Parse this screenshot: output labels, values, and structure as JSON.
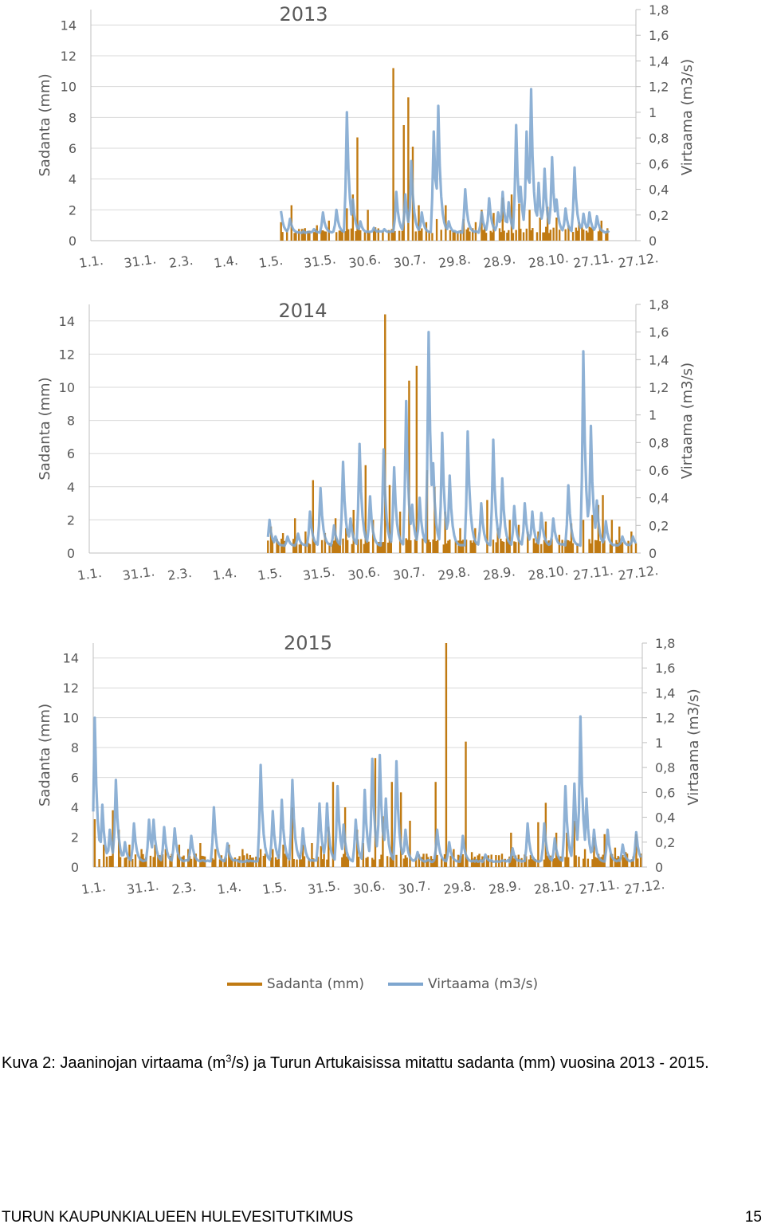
{
  "colors": {
    "sadanta": "#C07A12",
    "virtaama": "#7EA6CF",
    "grid": "#D9D9D9",
    "axis": "#BFBFBF",
    "text": "#595959"
  },
  "legend": {
    "sadanta": "Sadanta (mm)",
    "virtaama": "Virtaama (m3/s)"
  },
  "caption": {
    "part1": "Kuva 2: Jaaninojan virtaama (m",
    "sup": "3",
    "part2": "/s) ja Turun Artukaisissa mitattu sadanta (mm) vuosina 2013 - 2015."
  },
  "footer": {
    "title": "TURUN KAUPUNKIALUEEN HULEVESITUTKIMUS",
    "page": "15"
  },
  "chart_data": [
    {
      "type": "bar+line",
      "title": "2013",
      "ylabel": "Sadanta (mm)",
      "y2label": "Virtaama (m3/s)",
      "ylim": [
        0,
        15
      ],
      "y2lim": [
        0,
        1.8
      ],
      "yticks": [
        "0",
        "2",
        "4",
        "6",
        "8",
        "10",
        "12",
        "14"
      ],
      "y2ticks": [
        "0",
        "0,2",
        "0,4",
        "0,6",
        "0,8",
        "1",
        "1,2",
        "1,4",
        "1,6",
        "1,8"
      ],
      "xticks": [
        "1.1.",
        "31.1.",
        "2.3.",
        "1.4.",
        "1.5.",
        "31.5.",
        "30.6.",
        "30.7.",
        "29.8.",
        "28.9.",
        "28.10.",
        "27.11.",
        "27.12."
      ],
      "data_range": [
        128,
        347
      ],
      "sadanta_peaks": [
        [
          128,
          1.2
        ],
        [
          135,
          2.3
        ],
        [
          152,
          1.0
        ],
        [
          160,
          1.3
        ],
        [
          172,
          2.1
        ],
        [
          176,
          3.0
        ],
        [
          179,
          6.7
        ],
        [
          186,
          2.0
        ],
        [
          193,
          0.8
        ],
        [
          203,
          11.2
        ],
        [
          210,
          7.5
        ],
        [
          213,
          9.3
        ],
        [
          216,
          6.1
        ],
        [
          220,
          2.3
        ],
        [
          225,
          1.2
        ],
        [
          232,
          1.4
        ],
        [
          238,
          2.3
        ],
        [
          250,
          1.4
        ],
        [
          258,
          1.2
        ],
        [
          262,
          2.0
        ],
        [
          270,
          1.8
        ],
        [
          276,
          2.8
        ],
        [
          282,
          3.0
        ],
        [
          287,
          2.4
        ],
        [
          294,
          2.0
        ],
        [
          301,
          1.5
        ],
        [
          306,
          2.2
        ],
        [
          312,
          1.5
        ],
        [
          320,
          1.0
        ],
        [
          327,
          1.2
        ],
        [
          334,
          0.9
        ],
        [
          342,
          1.3
        ]
      ],
      "virtaama_base": 0.06,
      "virtaama_peaks": [
        [
          128,
          0.23
        ],
        [
          134,
          0.17
        ],
        [
          150,
          0.09
        ],
        [
          156,
          0.22
        ],
        [
          165,
          0.24
        ],
        [
          172,
          1.0
        ],
        [
          176,
          0.32
        ],
        [
          181,
          0.15
        ],
        [
          190,
          0.1
        ],
        [
          197,
          0.09
        ],
        [
          205,
          0.38
        ],
        [
          211,
          0.36
        ],
        [
          215,
          0.62
        ],
        [
          222,
          0.22
        ],
        [
          230,
          0.85
        ],
        [
          233,
          1.05
        ],
        [
          240,
          0.15
        ],
        [
          251,
          0.4
        ],
        [
          262,
          0.22
        ],
        [
          267,
          0.33
        ],
        [
          273,
          0.22
        ],
        [
          276,
          0.38
        ],
        [
          280,
          0.3
        ],
        [
          285,
          0.9
        ],
        [
          288,
          0.42
        ],
        [
          292,
          0.85
        ],
        [
          295,
          1.18
        ],
        [
          300,
          0.45
        ],
        [
          304,
          0.56
        ],
        [
          309,
          0.65
        ],
        [
          312,
          0.32
        ],
        [
          318,
          0.25
        ],
        [
          324,
          0.57
        ],
        [
          330,
          0.21
        ],
        [
          334,
          0.22
        ],
        [
          339,
          0.19
        ]
      ]
    },
    {
      "type": "bar+line",
      "title": "2014",
      "ylabel": "Sadanta (mm)",
      "y2label": "Virtaama (m3/s)",
      "ylim": [
        0,
        15
      ],
      "y2lim": [
        0,
        1.8
      ],
      "yticks": [
        "0",
        "2",
        "4",
        "6",
        "8",
        "10",
        "12",
        "14"
      ],
      "y2ticks": [
        "0",
        "0,2",
        "0,4",
        "0,6",
        "0,8",
        "1",
        "1,2",
        "1,4",
        "1,6",
        "1,8"
      ],
      "xticks": [
        "1.1.",
        "31.1.",
        "2.3.",
        "1.4.",
        "1.5.",
        "31.5.",
        "30.6.",
        "30.7.",
        "29.8.",
        "28.9.",
        "28.10.",
        "27.11.",
        "27.12."
      ],
      "data_range": [
        120,
        365
      ],
      "sadanta_peaks": [
        [
          122,
          1.6
        ],
        [
          130,
          1.2
        ],
        [
          138,
          2.1
        ],
        [
          145,
          1.3
        ],
        [
          150,
          4.4
        ],
        [
          158,
          1.2
        ],
        [
          165,
          2.1
        ],
        [
          172,
          1.5
        ],
        [
          177,
          2.6
        ],
        [
          185,
          5.3
        ],
        [
          190,
          2.0
        ],
        [
          198,
          14.4
        ],
        [
          201,
          4.1
        ],
        [
          208,
          2.5
        ],
        [
          214,
          10.4
        ],
        [
          219,
          11.3
        ],
        [
          226,
          5.0
        ],
        [
          231,
          4.0
        ],
        [
          238,
          2.5
        ],
        [
          248,
          1.5
        ],
        [
          258,
          1.5
        ],
        [
          266,
          3.2
        ],
        [
          273,
          1.5
        ],
        [
          281,
          2.0
        ],
        [
          287,
          1.7
        ],
        [
          293,
          1.3
        ],
        [
          300,
          1.3
        ],
        [
          305,
          1.9
        ],
        [
          314,
          1.1
        ],
        [
          322,
          1.8
        ],
        [
          330,
          2.0
        ],
        [
          336,
          2.3
        ],
        [
          340,
          2.9
        ],
        [
          343,
          3.5
        ],
        [
          349,
          2.0
        ],
        [
          354,
          1.6
        ],
        [
          362,
          1.3
        ]
      ],
      "virtaama_base": 0.05,
      "virtaama_peaks": [
        [
          121,
          0.24
        ],
        [
          125,
          0.12
        ],
        [
          133,
          0.12
        ],
        [
          140,
          0.14
        ],
        [
          148,
          0.3
        ],
        [
          155,
          0.47
        ],
        [
          164,
          0.2
        ],
        [
          170,
          0.66
        ],
        [
          175,
          0.25
        ],
        [
          181,
          0.79
        ],
        [
          188,
          0.41
        ],
        [
          197,
          0.75
        ],
        [
          204,
          0.62
        ],
        [
          212,
          1.1
        ],
        [
          216,
          0.35
        ],
        [
          221,
          0.4
        ],
        [
          227,
          1.6
        ],
        [
          230,
          0.65
        ],
        [
          236,
          0.87
        ],
        [
          241,
          0.56
        ],
        [
          253,
          0.88
        ],
        [
          262,
          0.36
        ],
        [
          270,
          0.82
        ],
        [
          276,
          0.54
        ],
        [
          284,
          0.34
        ],
        [
          291,
          0.36
        ],
        [
          296,
          0.3
        ],
        [
          302,
          0.29
        ],
        [
          310,
          0.25
        ],
        [
          320,
          0.49
        ],
        [
          330,
          1.46
        ],
        [
          335,
          0.92
        ],
        [
          339,
          0.38
        ],
        [
          345,
          0.23
        ],
        [
          356,
          0.12
        ],
        [
          363,
          0.12
        ]
      ]
    },
    {
      "type": "bar+line",
      "title": "2015",
      "ylabel": "Sadanta (mm)",
      "y2label": "Virtaama (m3/s)",
      "ylim": [
        0,
        15
      ],
      "y2lim": [
        0,
        1.8
      ],
      "yticks": [
        "0",
        "2",
        "4",
        "6",
        "8",
        "10",
        "12",
        "14"
      ],
      "y2ticks": [
        "0",
        "0,2",
        "0,4",
        "0,6",
        "0,8",
        "1",
        "1,2",
        "1,4",
        "1,6",
        "1,8"
      ],
      "xticks": [
        "1.1.",
        "31.1.",
        "2.3.",
        "1.4.",
        "1.5.",
        "31.5.",
        "30.6.",
        "30.7.",
        "29.8.",
        "28.9.",
        "28.10.",
        "27.11.",
        "27.12."
      ],
      "data_range": [
        1,
        364
      ],
      "sadanta_peaks": [
        [
          2,
          3.2
        ],
        [
          8,
          1.5
        ],
        [
          14,
          3.8
        ],
        [
          18,
          2.5
        ],
        [
          25,
          1.5
        ],
        [
          33,
          1.2
        ],
        [
          42,
          1.5
        ],
        [
          49,
          1.2
        ],
        [
          58,
          1.5
        ],
        [
          64,
          1.2
        ],
        [
          72,
          1.6
        ],
        [
          82,
          1.2
        ],
        [
          91,
          1.5
        ],
        [
          100,
          1.2
        ],
        [
          112,
          1.2
        ],
        [
          120,
          1.2
        ],
        [
          127,
          1.5
        ],
        [
          133,
          4.0
        ],
        [
          140,
          1.5
        ],
        [
          146,
          1.6
        ],
        [
          152,
          1.4
        ],
        [
          157,
          2.7
        ],
        [
          160,
          5.7
        ],
        [
          168,
          4.0
        ],
        [
          176,
          2.5
        ],
        [
          180,
          1.6
        ],
        [
          188,
          7.3
        ],
        [
          193,
          3.4
        ],
        [
          199,
          5.7
        ],
        [
          205,
          5.0
        ],
        [
          211,
          3.1
        ],
        [
          228,
          5.7
        ],
        [
          235,
          15.0
        ],
        [
          240,
          1.2
        ],
        [
          248,
          8.4
        ],
        [
          252,
          1.0
        ],
        [
          260,
          0.7
        ],
        [
          268,
          0.8
        ],
        [
          278,
          2.3
        ],
        [
          285,
          0.6
        ],
        [
          296,
          3.0
        ],
        [
          301,
          4.3
        ],
        [
          308,
          2.3
        ],
        [
          315,
          2.3
        ],
        [
          320,
          3.1
        ],
        [
          327,
          1.2
        ],
        [
          333,
          2.0
        ],
        [
          340,
          2.2
        ],
        [
          347,
          1.3
        ],
        [
          354,
          1.0
        ],
        [
          361,
          2.2
        ]
      ],
      "virtaama_base": 0.04,
      "virtaama_peaks": [
        [
          2,
          1.2
        ],
        [
          7,
          0.5
        ],
        [
          12,
          0.3
        ],
        [
          16,
          0.7
        ],
        [
          22,
          0.2
        ],
        [
          28,
          0.35
        ],
        [
          38,
          0.38
        ],
        [
          41,
          0.38
        ],
        [
          48,
          0.32
        ],
        [
          55,
          0.31
        ],
        [
          66,
          0.25
        ],
        [
          81,
          0.48
        ],
        [
          90,
          0.19
        ],
        [
          112,
          0.82
        ],
        [
          120,
          0.45
        ],
        [
          126,
          0.54
        ],
        [
          133,
          0.7
        ],
        [
          140,
          0.31
        ],
        [
          151,
          0.51
        ],
        [
          156,
          0.51
        ],
        [
          163,
          0.65
        ],
        [
          167,
          0.34
        ],
        [
          175,
          0.38
        ],
        [
          181,
          0.62
        ],
        [
          186,
          0.87
        ],
        [
          191,
          0.9
        ],
        [
          195,
          0.55
        ],
        [
          202,
          0.85
        ],
        [
          208,
          0.3
        ],
        [
          216,
          0.12
        ],
        [
          229,
          0.3
        ],
        [
          237,
          0.2
        ],
        [
          246,
          0.25
        ],
        [
          261,
          0.1
        ],
        [
          279,
          0.15
        ],
        [
          289,
          0.35
        ],
        [
          300,
          0.35
        ],
        [
          307,
          0.23
        ],
        [
          314,
          0.65
        ],
        [
          320,
          0.67
        ],
        [
          324,
          1.21
        ],
        [
          328,
          0.55
        ],
        [
          333,
          0.3
        ],
        [
          342,
          0.3
        ],
        [
          352,
          0.18
        ],
        [
          361,
          0.28
        ]
      ]
    }
  ]
}
